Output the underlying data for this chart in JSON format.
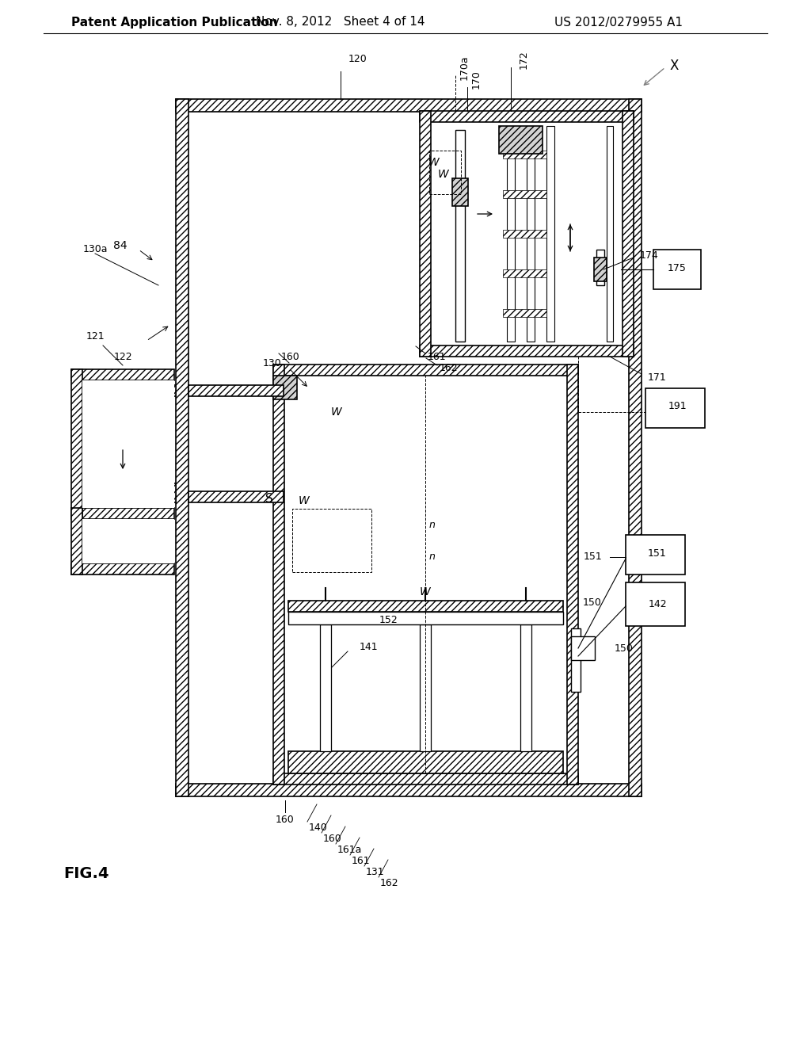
{
  "bg_color": "#ffffff",
  "header_left": "Patent Application Publication",
  "header_mid": "Nov. 8, 2012   Sheet 4 of 14",
  "header_right": "US 2012/0279955 A1",
  "fig_label": "FIG.4"
}
